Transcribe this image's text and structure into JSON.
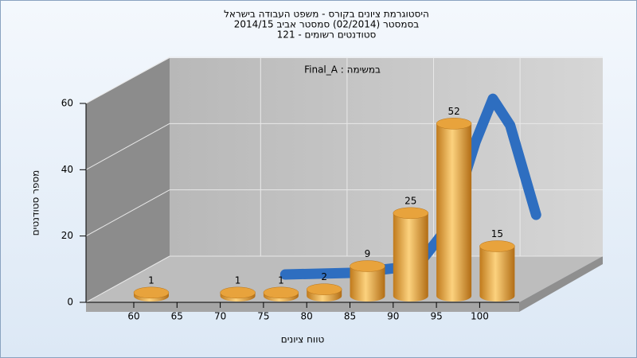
{
  "chart_data": {
    "type": "bar3d",
    "title": [
      "היסטוגרמת ציונים בקורס - משפט העבודה בישראל",
      "בסמסטר  (02/2014)  סמסטר אביב 2014/15",
      "סטודנטים רשומים - 121"
    ],
    "annotation": "במשימה : Final_A",
    "x_label": "טווח ציונים",
    "y_label": "מספר סטודנטים",
    "categories": [
      "60",
      "65",
      "70",
      "75",
      "80",
      "85",
      "90",
      "95",
      "100"
    ],
    "values": [
      1,
      null,
      1,
      1,
      2,
      9,
      25,
      52,
      15
    ],
    "color": "#e8a33c",
    "curve": {
      "color": "#2e6ec0",
      "x": [
        72,
        80,
        85,
        88,
        91,
        94,
        96,
        98,
        101
      ],
      "values": [
        0,
        0.5,
        2,
        5,
        15,
        40,
        53,
        45,
        18
      ]
    },
    "ylim": [
      0,
      60
    ],
    "yticks": [
      0,
      20,
      40,
      60
    ],
    "grid": true
  }
}
